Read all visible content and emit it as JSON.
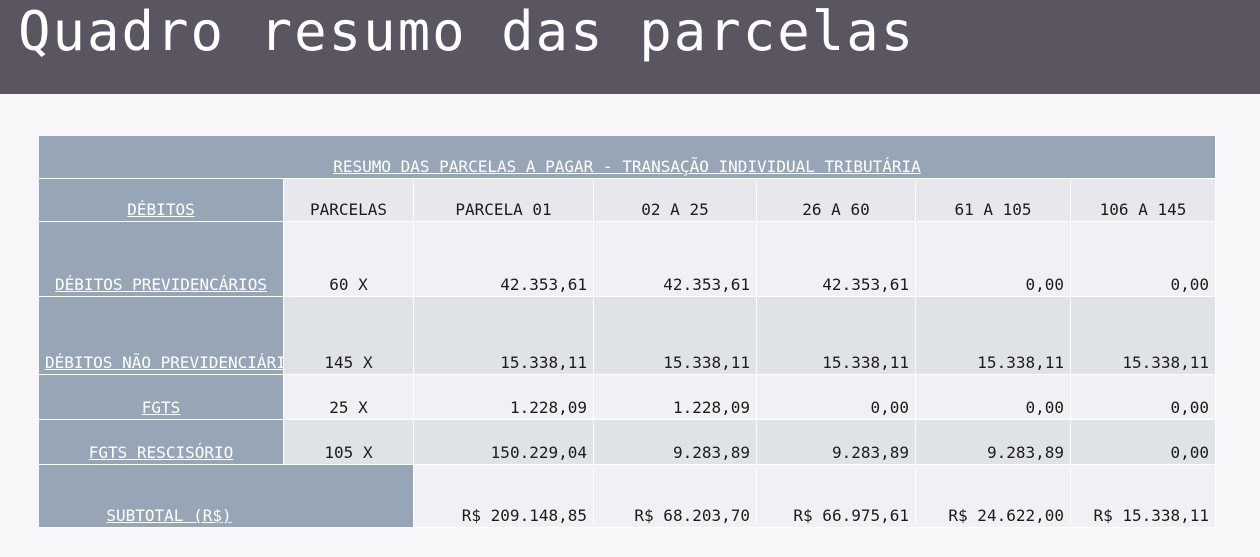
{
  "page": {
    "title": "Quadro resumo das parcelas"
  },
  "table": {
    "title": "RESUMO DAS PARCELAS A PAGAR - TRANSAÇÃO INDIVIDUAL TRIBUTÁRIA",
    "headers": [
      "DÉBITOS",
      "PARCELAS",
      "PARCELA 01",
      "02 A 25",
      "26 A 60",
      "61 A 105",
      "106 A 145"
    ],
    "rows": [
      {
        "label": "DÉBITOS PREVIDENCÁRIOS",
        "parcelas": "60 X",
        "values": [
          "42.353,61",
          "42.353,61",
          "42.353,61",
          "0,00",
          "0,00"
        ]
      },
      {
        "label": "DÉBITOS NÃO PREVIDENCIÁRIOS",
        "parcelas": "145 X",
        "values": [
          "15.338,11",
          "15.338,11",
          "15.338,11",
          "15.338,11",
          "15.338,11"
        ]
      },
      {
        "label": "FGTS",
        "parcelas": "25 X",
        "values": [
          "1.228,09",
          "1.228,09",
          "0,00",
          "0,00",
          "0,00"
        ]
      },
      {
        "label": "FGTS RESCISÓRIO",
        "parcelas": "105 X",
        "values": [
          "150.229,04",
          "9.283,89",
          "9.283,89",
          "9.283,89",
          "0,00"
        ]
      }
    ],
    "subtotal": {
      "label": "SUBTOTAL (R$)",
      "values": [
        "R$ 209.148,85",
        "R$ 68.203,70",
        "R$ 66.975,61",
        "R$ 24.622,00",
        "R$ 15.338,11"
      ]
    }
  }
}
